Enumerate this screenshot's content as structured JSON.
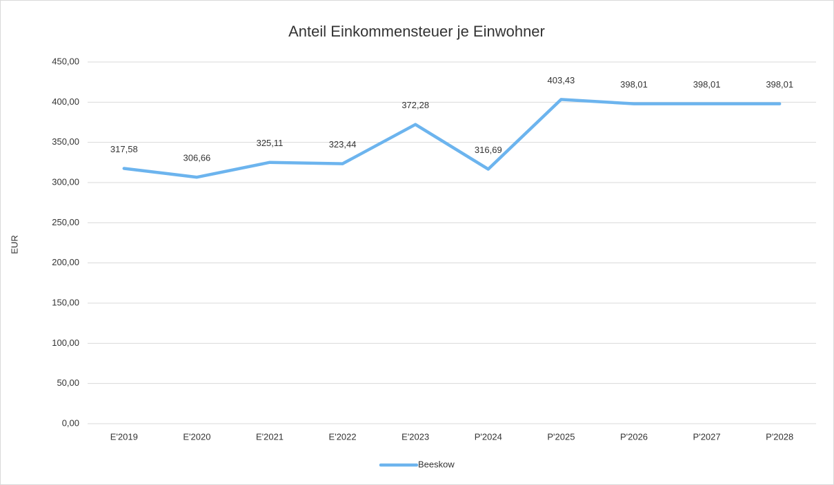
{
  "chart_data": {
    "type": "line",
    "title": "Anteil Einkommensteuer je Einwohner",
    "y_label": "EUR",
    "categories": [
      "E'2019",
      "E'2020",
      "E'2021",
      "E'2022",
      "E'2023",
      "P'2024",
      "P'2025",
      "P'2026",
      "P'2027",
      "P'2028"
    ],
    "series": [
      {
        "name": "Beeskow",
        "color": "#6cb4ee",
        "values": [
          317.58,
          306.66,
          325.11,
          323.44,
          372.28,
          316.69,
          403.43,
          398.01,
          398.01,
          398.01
        ],
        "value_labels": [
          "317,58",
          "306,66",
          "325,11",
          "323,44",
          "372,28",
          "316,69",
          "403,43",
          "398,01",
          "398,01",
          "398,01"
        ]
      }
    ],
    "ylim": [
      0,
      450
    ],
    "yticks": [
      {
        "value": 0,
        "label": "0,00"
      },
      {
        "value": 50,
        "label": "50,00"
      },
      {
        "value": 100,
        "label": "100,00"
      },
      {
        "value": 150,
        "label": "150,00"
      },
      {
        "value": 200,
        "label": "200,00"
      },
      {
        "value": 250,
        "label": "250,00"
      },
      {
        "value": 300,
        "label": "300,00"
      },
      {
        "value": 350,
        "label": "350,00"
      },
      {
        "value": 400,
        "label": "400,00"
      },
      {
        "value": 450,
        "label": "450,00"
      }
    ],
    "grid": true,
    "legend": "bottom"
  }
}
